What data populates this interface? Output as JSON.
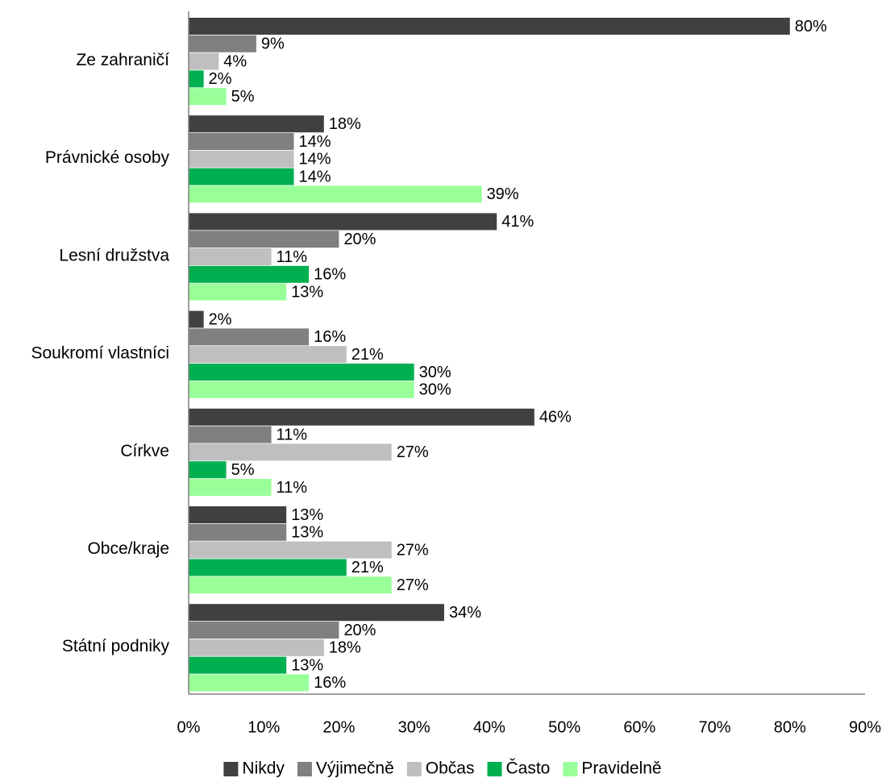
{
  "chart_data": {
    "type": "bar",
    "orientation": "horizontal",
    "categories": [
      "Ze zahraničí",
      "Právnické osoby",
      "Lesní družstva",
      "Soukromí vlastníci",
      "Církve",
      "Obce/kraje",
      "Státní podniky"
    ],
    "series": [
      {
        "name": "Nikdy",
        "color": "#404040",
        "values": [
          80,
          18,
          41,
          2,
          46,
          13,
          34
        ],
        "labels": [
          "80%",
          "18%",
          "41%",
          "2%",
          "46%",
          "13%",
          "34%"
        ]
      },
      {
        "name": "Výjimečně",
        "color": "#808080",
        "values": [
          9,
          14,
          20,
          16,
          11,
          13,
          20
        ],
        "labels": [
          "9%",
          "14%",
          "20%",
          "16%",
          "11%",
          "13%",
          "20%"
        ]
      },
      {
        "name": "Občas",
        "color": "#bfbfbf",
        "values": [
          4,
          14,
          11,
          21,
          27,
          27,
          18
        ],
        "labels": [
          "4%",
          "14%",
          "11%",
          "21%",
          "27%",
          "27%",
          "18%"
        ]
      },
      {
        "name": "Často",
        "color": "#00b050",
        "values": [
          2,
          14,
          16,
          30,
          5,
          21,
          13
        ],
        "labels": [
          "2%",
          "14%",
          "16%",
          "30%",
          "5%",
          "21%",
          "13%"
        ]
      },
      {
        "name": "Pravidelně",
        "color": "#99ff99",
        "values": [
          5,
          39,
          13,
          30,
          11,
          27,
          16
        ],
        "labels": [
          "5%",
          "39%",
          "13%",
          "30%",
          "11%",
          "27%",
          "16%"
        ]
      }
    ],
    "xlim": [
      0,
      90
    ],
    "xticks": [
      0,
      10,
      20,
      30,
      40,
      50,
      60,
      70,
      80,
      90
    ],
    "xtick_labels": [
      "0%",
      "10%",
      "20%",
      "30%",
      "40%",
      "50%",
      "60%",
      "70%",
      "80%",
      "90%"
    ],
    "grid": false,
    "legend_position": "bottom"
  }
}
